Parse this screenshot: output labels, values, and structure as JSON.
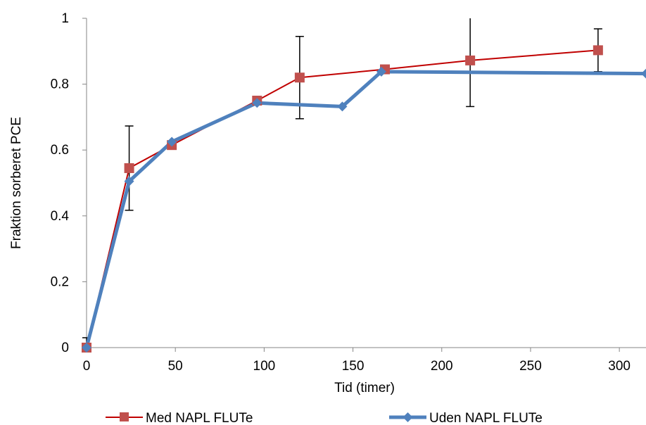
{
  "chart_data": {
    "type": "line",
    "xlabel": "Tid (timer)",
    "ylabel": "Fraktion sorberet PCE",
    "xlim": [
      0,
      315
    ],
    "ylim": [
      0,
      1
    ],
    "x_ticks": [
      "0",
      "50",
      "100",
      "150",
      "200",
      "250",
      "300"
    ],
    "y_ticks": [
      "0",
      "0.2",
      "0.4",
      "0.6",
      "0.8",
      "1"
    ],
    "grid": false,
    "legend_position": "bottom",
    "series": [
      {
        "name": "Med NAPL FLUTe",
        "color": "#c0504d",
        "line_color": "#c00000",
        "marker": "square",
        "points": [
          {
            "x": 0,
            "y": 0,
            "err": 0.03
          },
          {
            "x": 24,
            "y": 0.545,
            "err": 0.128
          },
          {
            "x": 48,
            "y": 0.615
          },
          {
            "x": 96,
            "y": 0.75
          },
          {
            "x": 120,
            "y": 0.82,
            "err": 0.125
          },
          {
            "x": 168,
            "y": 0.845
          },
          {
            "x": 216,
            "y": 0.872,
            "err": 0.14
          },
          {
            "x": 288,
            "y": 0.903,
            "err": 0.065
          }
        ]
      },
      {
        "name": "Uden NAPL FLUTe",
        "color": "#4f81bd",
        "marker": "diamond",
        "points": [
          {
            "x": 0,
            "y": 0
          },
          {
            "x": 24,
            "y": 0.505
          },
          {
            "x": 48,
            "y": 0.625
          },
          {
            "x": 96,
            "y": 0.743
          },
          {
            "x": 144,
            "y": 0.732
          },
          {
            "x": 166,
            "y": 0.838
          },
          {
            "x": 315,
            "y": 0.832
          }
        ]
      }
    ]
  }
}
